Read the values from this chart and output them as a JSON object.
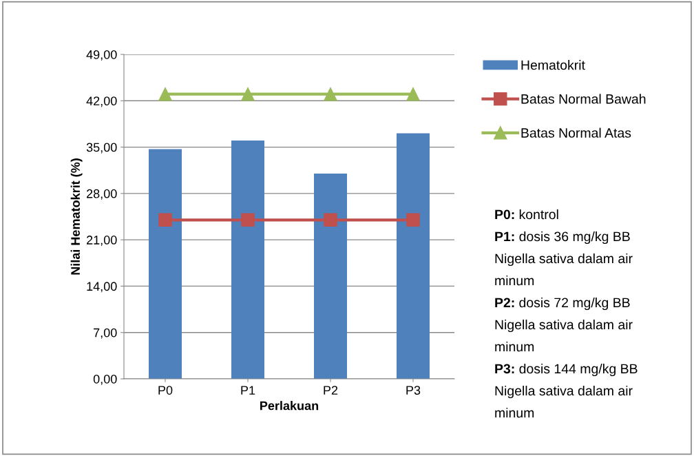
{
  "chart_data": {
    "type": "bar",
    "xlabel": "Perlakuan",
    "ylabel": "Nilai Hematokrit (%)",
    "categories": [
      "P0",
      "P1",
      "P2",
      "P3"
    ],
    "series": [
      {
        "name": "Hematokrit",
        "color": "#4f81bd",
        "values": [
          34.7,
          36.0,
          31.0,
          37.1
        ]
      },
      {
        "name": "Batas Normal Bawah",
        "type": "line",
        "color": "#c0504d",
        "marker": "square",
        "values": [
          24,
          24,
          24,
          24
        ]
      },
      {
        "name": "Batas Normal Atas",
        "type": "line",
        "color": "#9bbb59",
        "marker": "triangle",
        "values": [
          43,
          43,
          43,
          43
        ]
      }
    ],
    "ylim": [
      0,
      49
    ],
    "yticks": [
      {
        "value": 0,
        "label": "0,00"
      },
      {
        "value": 7,
        "label": "7,00"
      },
      {
        "value": 14,
        "label": "14,00"
      },
      {
        "value": 21,
        "label": "21,00"
      },
      {
        "value": 28,
        "label": "28,00"
      },
      {
        "value": 35,
        "label": "35,00"
      },
      {
        "value": 42,
        "label": "42,00"
      },
      {
        "value": 49,
        "label": "49,00"
      }
    ],
    "grid": "y",
    "legend": "right",
    "annotations": [
      "P0: kontrol",
      "P1: dosis 36 mg/kg BB",
      "Nigella sativa dalam air",
      "minum",
      "P2: dosis 72 mg/kg BB",
      "Nigella sativa dalam air",
      "minum",
      "P3: dosis 144 mg/kg BB",
      "Nigella sativa dalam air",
      "minum"
    ]
  }
}
